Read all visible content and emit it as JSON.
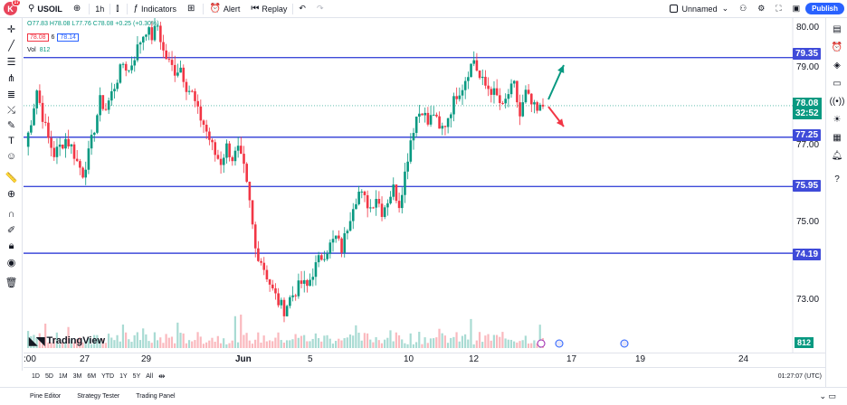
{
  "topbar": {
    "avatar_letter": "K",
    "avatar_badge": "17",
    "symbol": "USOIL",
    "interval": "1h",
    "indicators_label": "Indicators",
    "alert_label": "Alert",
    "replay_label": "Replay",
    "layout_name": "Unnamed",
    "publish_label": "Publish"
  },
  "legend": {
    "ohlc_text": "O77.83 H78.08 L77.76 C78.08 +0.25 (+0.30%)",
    "price_sell": "78.08",
    "price_buy": "78.14",
    "spread": "6",
    "vol_label": "Vol",
    "vol_value": "812"
  },
  "price_axis": {
    "labels": [
      "80.00",
      "79.00",
      "77.00",
      "75.00",
      "73.00"
    ],
    "current_price": "78.08",
    "countdown": "32:52",
    "volume_tag": "812"
  },
  "levels": [
    {
      "value": "79.35"
    },
    {
      "value": "77.25"
    },
    {
      "value": "75.95"
    },
    {
      "value": "74.19"
    }
  ],
  "time_axis": {
    "labels": [
      ":00",
      "27",
      "29",
      "Jun",
      "5",
      "10",
      "12",
      "17",
      "19",
      "24"
    ]
  },
  "range_bar": {
    "items": [
      "1D",
      "5D",
      "1M",
      "3M",
      "6M",
      "YTD",
      "1Y",
      "5Y",
      "All"
    ],
    "clock": "01:27:07 (UTC)"
  },
  "bottom_tabs": {
    "items": [
      "Pine Editor",
      "Strategy Tester",
      "Trading Panel"
    ]
  },
  "watermark": "TradingView",
  "colors": {
    "up": "#089981",
    "down": "#f23645",
    "level_line": "#3f4bd9",
    "accent": "#2962ff"
  },
  "chart_data": {
    "type": "candlestick",
    "symbol": "USOIL",
    "interval": "1h",
    "ylim": [
      72.0,
      80.2
    ],
    "horizontal_levels": [
      79.35,
      77.25,
      75.95,
      74.19
    ],
    "close_path": [
      [
        0,
        77.0
      ],
      [
        2,
        77.7
      ],
      [
        4,
        78.5
      ],
      [
        6,
        77.8
      ],
      [
        8,
        77.2
      ],
      [
        10,
        76.8
      ],
      [
        12,
        77.0
      ],
      [
        14,
        77.2
      ],
      [
        16,
        77.0
      ],
      [
        18,
        76.6
      ],
      [
        20,
        76.3
      ],
      [
        22,
        76.8
      ],
      [
        24,
        77.5
      ],
      [
        26,
        78.2
      ],
      [
        28,
        78.0
      ],
      [
        30,
        78.4
      ],
      [
        32,
        78.8
      ],
      [
        34,
        79.2
      ],
      [
        36,
        79.0
      ],
      [
        38,
        79.4
      ],
      [
        40,
        79.8
      ],
      [
        42,
        80.1
      ],
      [
        44,
        79.9
      ],
      [
        46,
        80.2
      ],
      [
        48,
        79.5
      ],
      [
        50,
        79.2
      ],
      [
        52,
        79.0
      ],
      [
        54,
        79.1
      ],
      [
        56,
        78.6
      ],
      [
        58,
        78.4
      ],
      [
        60,
        77.9
      ],
      [
        62,
        77.6
      ],
      [
        64,
        77.2
      ],
      [
        66,
        76.8
      ],
      [
        68,
        76.6
      ],
      [
        70,
        77.0
      ],
      [
        72,
        76.7
      ],
      [
        74,
        76.9
      ],
      [
        76,
        76.4
      ],
      [
        78,
        75.5
      ],
      [
        80,
        74.3
      ],
      [
        82,
        74.0
      ],
      [
        84,
        73.6
      ],
      [
        86,
        73.2
      ],
      [
        88,
        72.9
      ],
      [
        90,
        72.7
      ],
      [
        92,
        73.0
      ],
      [
        94,
        73.2
      ],
      [
        96,
        73.4
      ],
      [
        98,
        73.3
      ],
      [
        100,
        73.7
      ],
      [
        102,
        74.0
      ],
      [
        104,
        74.2
      ],
      [
        106,
        74.4
      ],
      [
        108,
        74.6
      ],
      [
        110,
        74.3
      ],
      [
        112,
        74.9
      ],
      [
        114,
        75.5
      ],
      [
        116,
        75.8
      ],
      [
        118,
        75.6
      ],
      [
        120,
        75.4
      ],
      [
        122,
        75.7
      ],
      [
        124,
        75.3
      ],
      [
        126,
        75.6
      ],
      [
        128,
        75.9
      ],
      [
        130,
        75.5
      ],
      [
        132,
        76.3
      ],
      [
        134,
        77.2
      ],
      [
        136,
        77.8
      ],
      [
        138,
        78.0
      ],
      [
        140,
        77.6
      ],
      [
        142,
        77.9
      ],
      [
        144,
        77.4
      ],
      [
        146,
        77.6
      ],
      [
        148,
        78.0
      ],
      [
        150,
        78.4
      ],
      [
        152,
        78.6
      ],
      [
        154,
        79.0
      ],
      [
        156,
        79.3
      ],
      [
        158,
        78.8
      ],
      [
        160,
        78.6
      ],
      [
        162,
        78.5
      ],
      [
        164,
        78.3
      ],
      [
        166,
        78.0
      ],
      [
        168,
        78.4
      ],
      [
        170,
        78.6
      ],
      [
        172,
        77.8
      ],
      [
        174,
        78.4
      ],
      [
        176,
        78.1
      ],
      [
        178,
        77.9
      ],
      [
        180,
        78.08
      ]
    ],
    "annotations": [
      {
        "type": "arrow",
        "direction": "up",
        "color": "#089981"
      },
      {
        "type": "arrow",
        "direction": "down",
        "color": "#f23645"
      }
    ]
  }
}
